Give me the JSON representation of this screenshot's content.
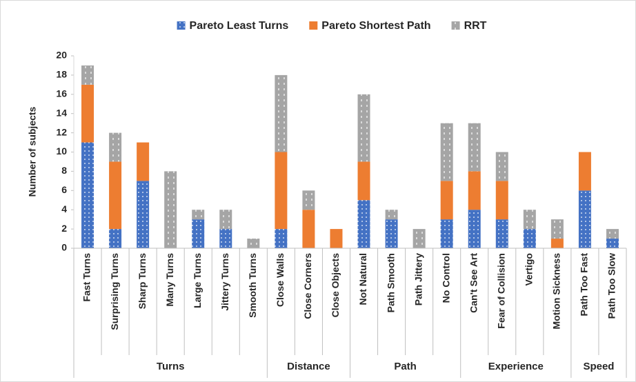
{
  "chart_data": {
    "type": "stacked_bar",
    "y_label": "Number of subjects",
    "groups": [
      {
        "name": "Turns",
        "categories": [
          "Fast Turns",
          "Surprising Turns",
          "Sharp Turns",
          "Many Turns",
          "Large Turns",
          "Jittery Turns",
          "Smooth Turns"
        ]
      },
      {
        "name": "Distance",
        "categories": [
          "Close Walls",
          "Close Corners",
          "Close Objects"
        ]
      },
      {
        "name": "Path",
        "categories": [
          "Not Natural",
          "Path Smooth",
          "Path Jittery",
          "No Control"
        ]
      },
      {
        "name": "Experience",
        "categories": [
          "Can't See Art",
          "Fear of Collision",
          "Vertigo",
          "Motion Sickness"
        ]
      },
      {
        "name": "Speed",
        "categories": [
          "Path Too Fast",
          "Path Too Slow"
        ]
      }
    ],
    "series": [
      {
        "name": "Pareto Least Turns",
        "color": "#4472c4",
        "values": [
          11,
          2,
          7,
          0,
          3,
          2,
          0,
          2,
          0,
          0,
          5,
          3,
          0,
          3,
          4,
          3,
          2,
          0,
          6,
          1
        ]
      },
      {
        "name": "Pareto Shortest Path",
        "color": "#ed7d31",
        "values": [
          6,
          7,
          4,
          0,
          0,
          0,
          0,
          8,
          4,
          2,
          4,
          0,
          0,
          4,
          4,
          4,
          0,
          1,
          4,
          0
        ]
      },
      {
        "name": "RRT",
        "color": "#a5a5a5",
        "values": [
          2,
          3,
          0,
          8,
          1,
          2,
          1,
          8,
          2,
          0,
          7,
          1,
          2,
          6,
          5,
          3,
          2,
          2,
          0,
          1
        ]
      }
    ],
    "ylim": [
      0,
      20
    ],
    "yticks": [
      0,
      2,
      4,
      6,
      8,
      10,
      12,
      14,
      16,
      18,
      20
    ],
    "legend": "top"
  }
}
